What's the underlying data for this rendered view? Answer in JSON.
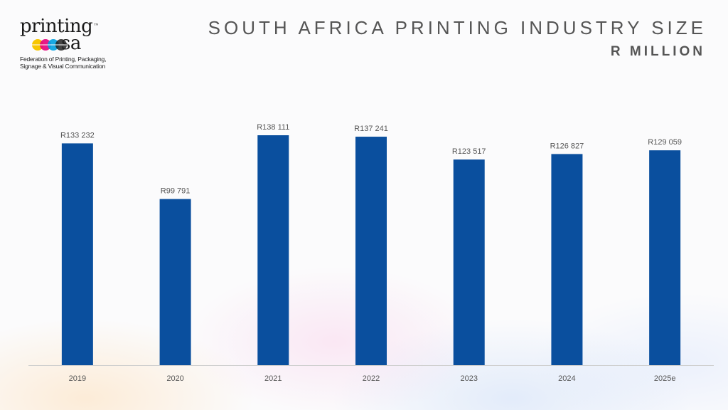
{
  "logo": {
    "line1": "printing",
    "line2": "sa",
    "trademark": "™",
    "tagline_1": "Federation of Printing, Packaging,",
    "tagline_2": "Signage & Visual Communication"
  },
  "header": {
    "title": "SOUTH AFRICA PRINTING INDUSTRY SIZE",
    "subtitle": "R MILLION"
  },
  "colors": {
    "bar": "#0a4f9e",
    "label": "#555555",
    "axis": "#cfcfcf"
  },
  "chart_data": {
    "type": "bar",
    "title": "SOUTH AFRICA PRINTING INDUSTRY SIZE",
    "ylabel": "",
    "xlabel": "",
    "categories": [
      "2019",
      "2020",
      "2021",
      "2022",
      "2023",
      "2024",
      "2025e"
    ],
    "values": [
      133232,
      99791,
      138111,
      137241,
      123517,
      126827,
      129059
    ],
    "data_labels": [
      "R133 232",
      "R99 791",
      "R138 111",
      "R137 241",
      "R123 517",
      "R126 827",
      "R129 059"
    ],
    "ylim": [
      0,
      138111
    ],
    "grid": false,
    "legend": "none"
  }
}
